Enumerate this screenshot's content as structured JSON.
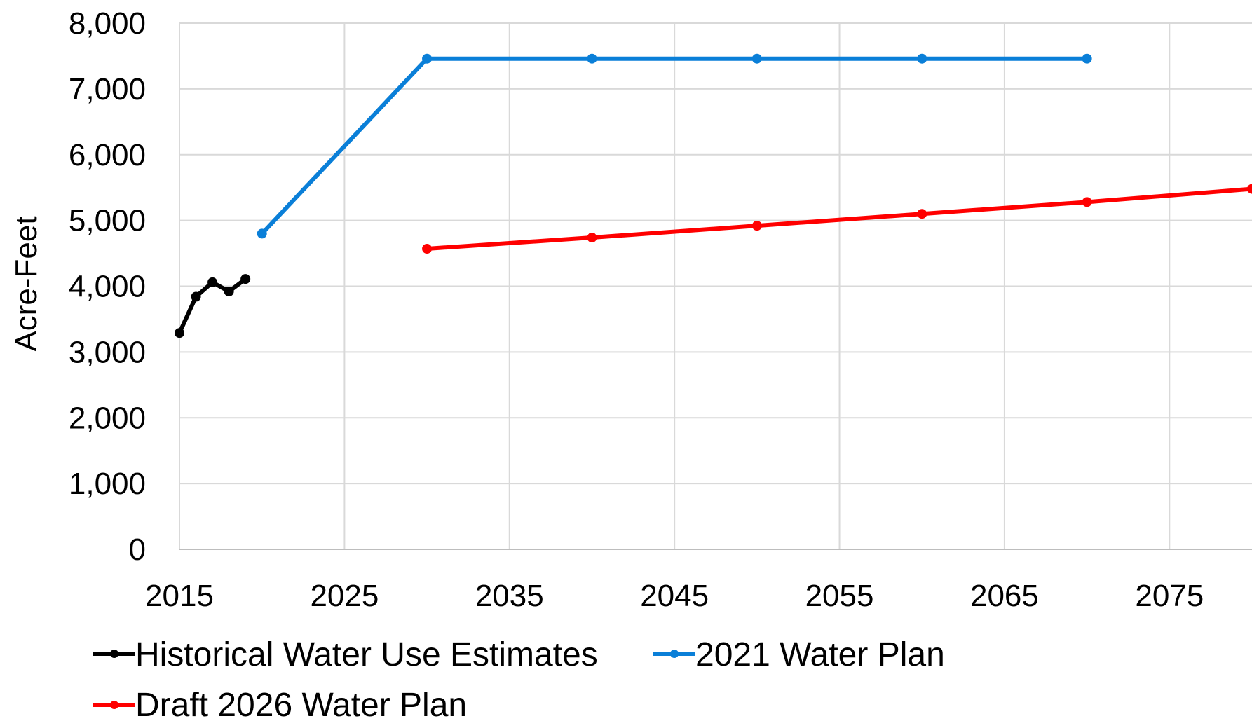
{
  "chart_data": {
    "type": "line",
    "title": "",
    "xlabel": "",
    "ylabel": "Acre-Feet",
    "xlim": [
      2015,
      2080
    ],
    "ylim": [
      0,
      8000
    ],
    "x_ticks": [
      "2015",
      "2025",
      "2035",
      "2045",
      "2055",
      "2065",
      "2075"
    ],
    "y_ticks": [
      "0",
      "1,000",
      "2,000",
      "3,000",
      "4,000",
      "5,000",
      "6,000",
      "7,000",
      "8,000"
    ],
    "grid": true,
    "legend_position": "bottom",
    "series": [
      {
        "name": "Historical Water Use Estimates",
        "color": "#000000",
        "x": [
          2015,
          2016,
          2017,
          2018,
          2019
        ],
        "y": [
          3290,
          3840,
          4060,
          3920,
          4110
        ]
      },
      {
        "name": "2021 Water Plan",
        "color": "#0a7fd8",
        "x": [
          2020,
          2030,
          2040,
          2050,
          2060,
          2070
        ],
        "y": [
          4800,
          7460,
          7460,
          7460,
          7460,
          7460
        ]
      },
      {
        "name": "Draft 2026 Water Plan",
        "color": "#ff0000",
        "x": [
          2030,
          2040,
          2050,
          2060,
          2070,
          2080
        ],
        "y": [
          4570,
          4740,
          4920,
          5100,
          5280,
          5480
        ]
      }
    ]
  }
}
